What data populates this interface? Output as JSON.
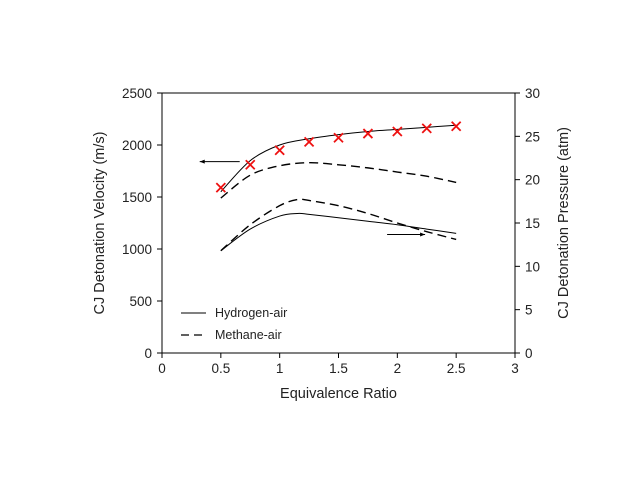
{
  "chart_data": {
    "type": "line",
    "xlabel": "Equivalence Ratio",
    "ylabel_left": "CJ Detonation Velocity (m/s)",
    "ylabel_right": "CJ Detonation Pressure (atm)",
    "xlim": [
      0,
      3
    ],
    "ylim_left": [
      0,
      2500
    ],
    "ylim_right": [
      0,
      30
    ],
    "x_ticks": [
      "0",
      "0.5",
      "1",
      "1.5",
      "2",
      "2.5",
      "3"
    ],
    "y_left_ticks": [
      "0",
      "500",
      "1000",
      "1500",
      "2000",
      "2500"
    ],
    "y_right_ticks": [
      "0",
      "5",
      "10",
      "15",
      "20",
      "25",
      "30"
    ],
    "grid": false,
    "legend_placement": "bottom-left",
    "legend": [
      {
        "label": "Hydrogen-air",
        "style": "solid"
      },
      {
        "label": "Methane-air",
        "style": "dashed"
      }
    ],
    "series": [
      {
        "name": "Hydrogen-air",
        "axis": "left",
        "style": "solid",
        "x": [
          0.5,
          0.75,
          1.0,
          1.25,
          1.5,
          1.75,
          2.0,
          2.25,
          2.5
        ],
        "y": [
          1550,
          1850,
          2000,
          2060,
          2100,
          2130,
          2150,
          2170,
          2190
        ]
      },
      {
        "name": "Methane-air",
        "axis": "left",
        "style": "dashed",
        "x": [
          0.5,
          0.75,
          1.0,
          1.25,
          1.5,
          1.75,
          2.0,
          2.25,
          2.5
        ],
        "y": [
          1490,
          1710,
          1800,
          1830,
          1810,
          1780,
          1740,
          1700,
          1640
        ]
      },
      {
        "name": "Hydrogen-air",
        "axis": "right",
        "style": "solid",
        "x": [
          0.5,
          0.75,
          1.0,
          1.15,
          1.25,
          1.5,
          1.75,
          2.0,
          2.25,
          2.5
        ],
        "y": [
          11.8,
          14.3,
          15.8,
          16.1,
          16.0,
          15.6,
          15.2,
          14.8,
          14.3,
          13.8
        ]
      },
      {
        "name": "Methane-air",
        "axis": "right",
        "style": "dashed",
        "x": [
          0.5,
          0.75,
          1.0,
          1.15,
          1.25,
          1.5,
          1.75,
          2.0,
          2.25,
          2.5
        ],
        "y": [
          11.8,
          14.8,
          17.0,
          17.7,
          17.6,
          17.0,
          16.1,
          15.0,
          14.0,
          13.1
        ]
      },
      {
        "name": "",
        "axis": "left",
        "style": "markers",
        "marker": "x",
        "color": "#ee1111",
        "x": [
          0.5,
          0.75,
          1.0,
          1.25,
          1.5,
          1.75,
          2.0,
          2.25,
          2.5
        ],
        "y": [
          1590,
          1810,
          1950,
          2030,
          2070,
          2110,
          2130,
          2160,
          2180
        ]
      }
    ],
    "annotations": [
      {
        "type": "arrow",
        "direction": "left",
        "points_to_axis": "left",
        "near": {
          "x": 0.55,
          "y": 1840
        }
      },
      {
        "type": "arrow",
        "direction": "right",
        "points_to_axis": "right",
        "near": {
          "x": 2.1,
          "y": 1140
        }
      }
    ]
  }
}
